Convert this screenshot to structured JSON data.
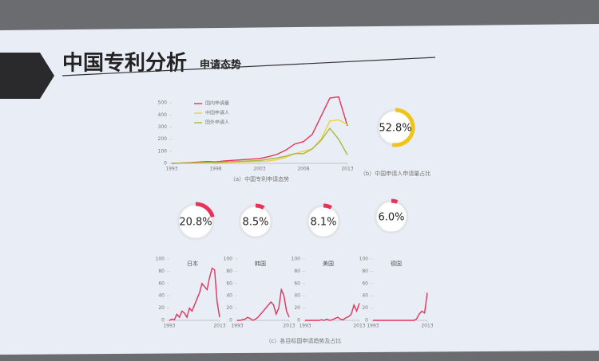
{
  "header": {
    "title": "中国专利分析",
    "subtitle": "申请态势"
  },
  "chart_data": [
    {
      "type": "line",
      "caption": "（a）中国专利申请态势",
      "x": [
        1993,
        1994,
        1995,
        1996,
        1997,
        1998,
        1999,
        2000,
        2001,
        2002,
        2003,
        2004,
        2005,
        2006,
        2007,
        2008,
        2009,
        2010,
        2011,
        2012,
        2013
      ],
      "xlim": [
        1993,
        2013
      ],
      "xticks": [
        1993,
        1998,
        2003,
        2008,
        2013
      ],
      "ylim": [
        0,
        560
      ],
      "yticks": [
        0,
        100,
        200,
        300,
        400,
        500
      ],
      "legend": "upper left",
      "series": [
        {
          "name": "国内申请量",
          "color": "#e8325a",
          "values": [
            0,
            3,
            5,
            10,
            15,
            12,
            20,
            25,
            30,
            35,
            40,
            55,
            75,
            110,
            160,
            180,
            240,
            390,
            540,
            550,
            310
          ]
        },
        {
          "name": "中国申请人",
          "color": "#f0cf3a",
          "values": [
            0,
            1,
            2,
            4,
            6,
            5,
            8,
            10,
            12,
            14,
            16,
            20,
            30,
            50,
            80,
            100,
            120,
            200,
            350,
            360,
            320
          ]
        },
        {
          "name": "国外申请人",
          "color": "#a9b83a",
          "values": [
            0,
            2,
            3,
            6,
            9,
            7,
            12,
            15,
            18,
            21,
            24,
            35,
            45,
            60,
            80,
            80,
            120,
            190,
            290,
            200,
            70
          ]
        }
      ]
    },
    {
      "type": "donut",
      "values": [
        52.8
      ],
      "value_labels": [
        "52.8%"
      ],
      "color": "#f0c419",
      "caption": "（b）中国申请人申请量占比"
    },
    {
      "type": "donut",
      "values": [
        20.8
      ],
      "value_labels": [
        "20.8%"
      ],
      "color": "#e8325a"
    },
    {
      "type": "donut",
      "values": [
        8.5
      ],
      "value_labels": [
        "8.5%"
      ],
      "color": "#e8325a"
    },
    {
      "type": "donut",
      "values": [
        8.1
      ],
      "value_labels": [
        "8.1%"
      ],
      "color": "#e8325a"
    },
    {
      "type": "donut",
      "values": [
        6
      ],
      "value_labels": [
        "6.0%"
      ],
      "color": "#e8325a"
    },
    {
      "type": "line",
      "title": "日本",
      "x": [
        1993,
        1994,
        1995,
        1996,
        1997,
        1998,
        1999,
        2000,
        2001,
        2002,
        2003,
        2004,
        2005,
        2006,
        2007,
        2008,
        2009,
        2010,
        2011,
        2012,
        2013
      ],
      "xlim": [
        1993,
        2013
      ],
      "xticks": [
        1993,
        2013
      ],
      "ylim": [
        0,
        100
      ],
      "yticks": [
        0,
        20,
        40,
        60,
        80,
        100
      ],
      "series": [
        {
          "color": "#e8325a",
          "values": [
            0,
            2,
            1,
            10,
            5,
            15,
            12,
            5,
            20,
            15,
            25,
            35,
            45,
            60,
            55,
            50,
            70,
            85,
            82,
            30,
            5
          ]
        }
      ]
    },
    {
      "type": "line",
      "title": "韩国",
      "x": [
        1993,
        1994,
        1995,
        1996,
        1997,
        1998,
        1999,
        2000,
        2001,
        2002,
        2003,
        2004,
        2005,
        2006,
        2007,
        2008,
        2009,
        2010,
        2011,
        2012,
        2013
      ],
      "xlim": [
        1993,
        2013
      ],
      "xticks": [
        1993,
        2013
      ],
      "ylim": [
        0,
        100
      ],
      "yticks": [
        0,
        20,
        40,
        60,
        80,
        100
      ],
      "series": [
        {
          "color": "#e8325a",
          "values": [
            0,
            0,
            1,
            2,
            5,
            3,
            0,
            2,
            5,
            10,
            15,
            20,
            25,
            30,
            25,
            10,
            20,
            50,
            40,
            15,
            5
          ]
        }
      ]
    },
    {
      "type": "line",
      "title": "美国",
      "x": [
        1993,
        1994,
        1995,
        1996,
        1997,
        1998,
        1999,
        2000,
        2001,
        2002,
        2003,
        2004,
        2005,
        2006,
        2007,
        2008,
        2009,
        2010,
        2011,
        2012,
        2013
      ],
      "xlim": [
        1993,
        2013
      ],
      "xticks": [
        1993,
        2013
      ],
      "ylim": [
        0,
        100
      ],
      "yticks": [
        0,
        20,
        40,
        60,
        80,
        100
      ],
      "series": [
        {
          "color": "#e8325a",
          "values": [
            0,
            0,
            0,
            0,
            0,
            0,
            1,
            0,
            2,
            0,
            1,
            3,
            5,
            2,
            1,
            4,
            6,
            10,
            25,
            15,
            28
          ]
        }
      ]
    },
    {
      "type": "line",
      "title": "德国",
      "caption": "（c）各目标国申请趋势及占比",
      "x": [
        1993,
        1994,
        1995,
        1996,
        1997,
        1998,
        1999,
        2000,
        2001,
        2002,
        2003,
        2004,
        2005,
        2006,
        2007,
        2008,
        2009,
        2010,
        2011,
        2012,
        2013
      ],
      "xlim": [
        1993,
        2013
      ],
      "xticks": [
        1993,
        2013
      ],
      "ylim": [
        0,
        100
      ],
      "yticks": [
        0,
        20,
        40,
        60,
        80,
        100
      ],
      "series": [
        {
          "color": "#e8325a",
          "values": [
            0,
            0,
            0,
            0,
            0,
            0,
            0,
            0,
            0,
            0,
            0,
            0,
            0,
            0,
            0,
            0,
            2,
            10,
            15,
            12,
            45
          ]
        }
      ]
    }
  ]
}
